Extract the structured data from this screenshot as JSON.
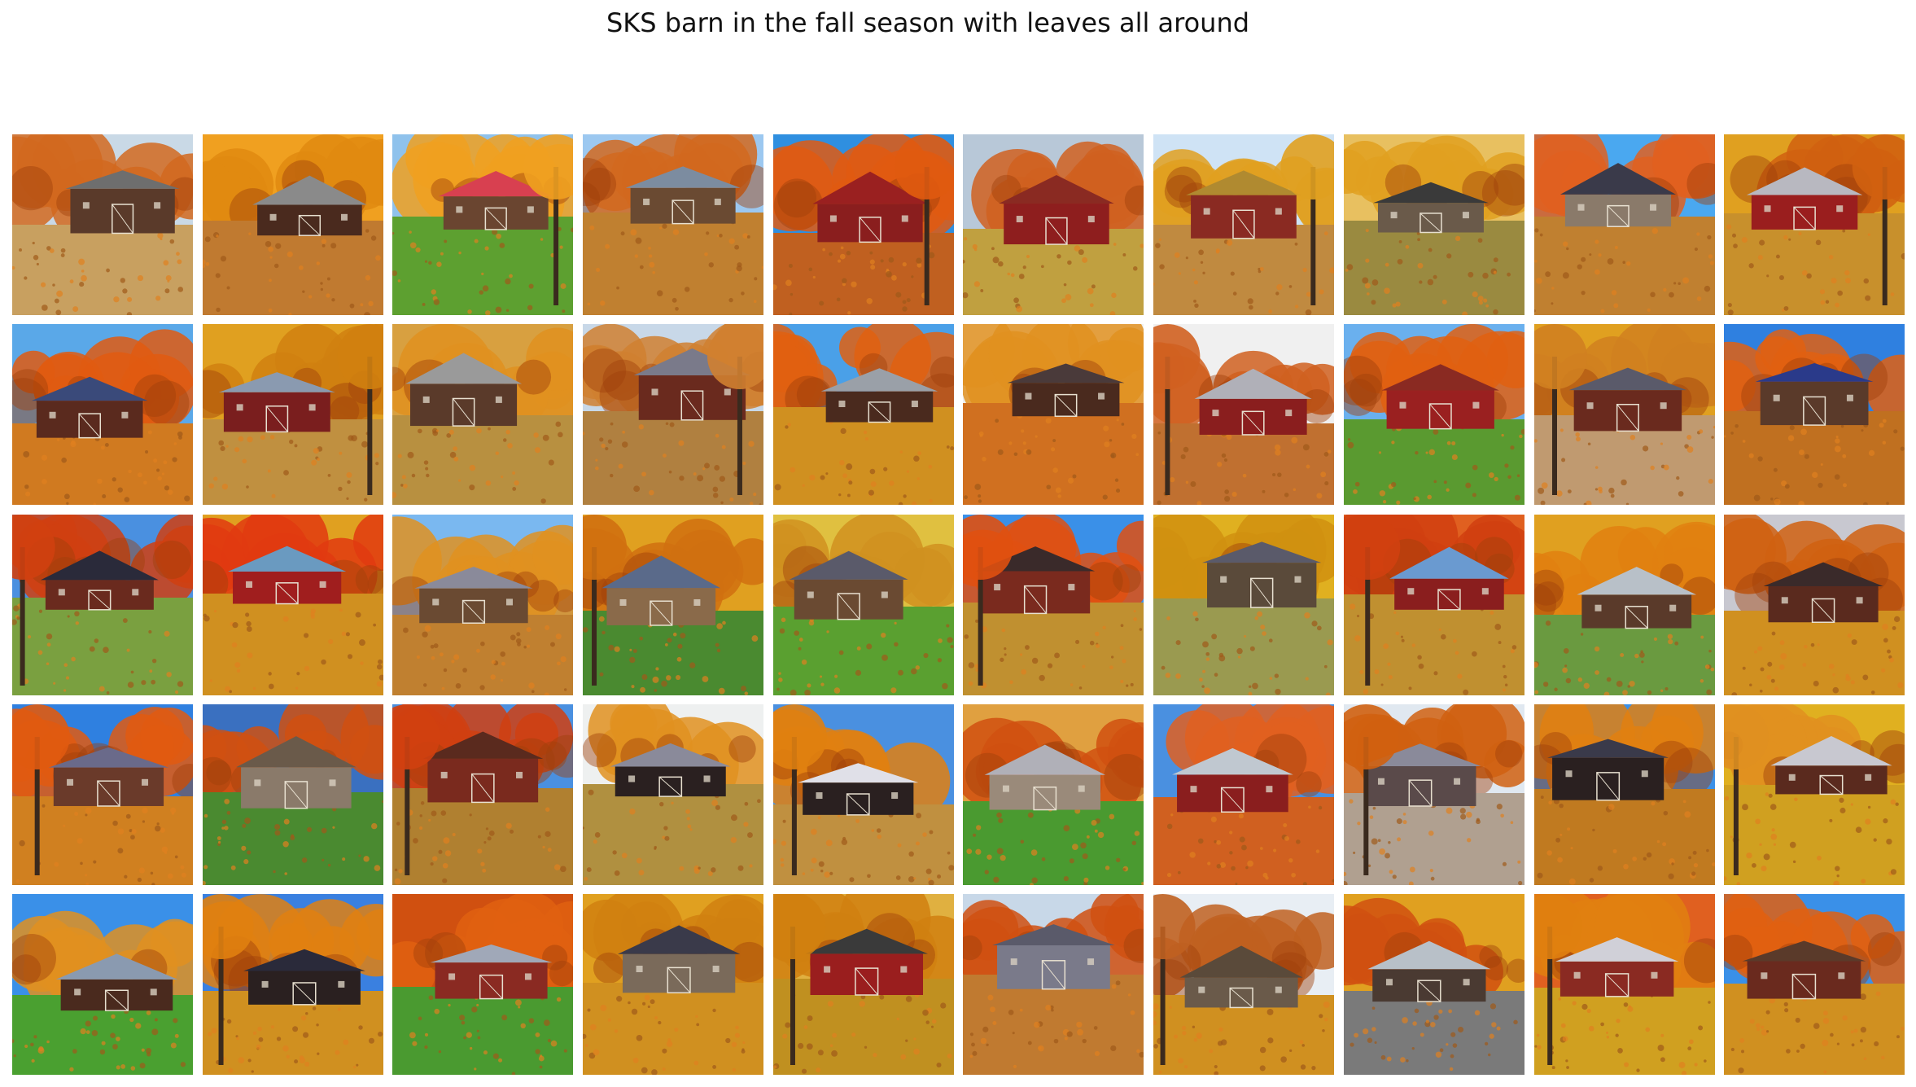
{
  "figure": {
    "title": "SKS barn in the fall season with leaves all around"
  },
  "gallery": {
    "rows": 5,
    "columns": 10,
    "tiles": [
      {
        "subject": "barn",
        "sky": "#c9d9e6",
        "foliage": "#d2691e",
        "ground": "#c8a060",
        "roof": "#6e6e6e",
        "wall": "#5a3a2a"
      },
      {
        "subject": "barn",
        "sky": "#f0a020",
        "foliage": "#e08a10",
        "ground": "#c07a30",
        "roof": "#8a8a8a",
        "wall": "#4a2a1e"
      },
      {
        "subject": "barn",
        "sky": "#8fc2ec",
        "foliage": "#f0a020",
        "ground": "#5da030",
        "roof": "#d84050",
        "wall": "#6a4530"
      },
      {
        "subject": "barn",
        "sky": "#9cc8f0",
        "foliage": "#d2691e",
        "ground": "#c08030",
        "roof": "#7c8ca0",
        "wall": "#6a4a32"
      },
      {
        "subject": "barn",
        "sky": "#2f8fe0",
        "foliage": "#e05a10",
        "ground": "#c06020",
        "roof": "#9a2020",
        "wall": "#8a1e1e"
      },
      {
        "subject": "barn",
        "sky": "#b8c8d8",
        "foliage": "#d06020",
        "ground": "#c0a040",
        "roof": "#8a2a22",
        "wall": "#8e1e1e"
      },
      {
        "subject": "barn",
        "sky": "#cfe3f5",
        "foliage": "#e0a020",
        "ground": "#c08a40",
        "roof": "#b08a30",
        "wall": "#8a2a22"
      },
      {
        "subject": "barn",
        "sky": "#e8c060",
        "foliage": "#e0a020",
        "ground": "#9a8a40",
        "roof": "#3a3a3a",
        "wall": "#6a5a4a"
      },
      {
        "subject": "barn",
        "sky": "#4aa8f0",
        "foliage": "#e06020",
        "ground": "#c08030",
        "roof": "#3a3a4a",
        "wall": "#8a7a6a"
      },
      {
        "subject": "barn",
        "sky": "#e0a020",
        "foliage": "#d06010",
        "ground": "#c8902c",
        "roof": "#b8b8c0",
        "wall": "#9a1e1e"
      },
      {
        "subject": "barn",
        "sky": "#5aa8e8",
        "foliage": "#e05a10",
        "ground": "#d07a20",
        "roof": "#3a4a7a",
        "wall": "#5a2a1e"
      },
      {
        "subject": "barn",
        "sky": "#e0a020",
        "foliage": "#d08010",
        "ground": "#c09040",
        "roof": "#8a9ab0",
        "wall": "#7a1e1e"
      },
      {
        "subject": "barn",
        "sky": "#d8a040",
        "foliage": "#e09020",
        "ground": "#b89040",
        "roof": "#9a9a9a",
        "wall": "#5a3a2a"
      },
      {
        "subject": "barn",
        "sky": "#c8d8e8",
        "foliage": "#d08030",
        "ground": "#b08040",
        "roof": "#7a7a8a",
        "wall": "#6a2a1e"
      },
      {
        "subject": "barn",
        "sky": "#4aa0e8",
        "foliage": "#e06010",
        "ground": "#d09020",
        "roof": "#9aa0a8",
        "wall": "#4a2a1e"
      },
      {
        "subject": "barn",
        "sky": "#eef0f0",
        "foliage": "#e09020",
        "ground": "#d07020",
        "roof": "#4a3a3a",
        "wall": "#4a2a1e"
      },
      {
        "subject": "barn",
        "sky": "#f0f0f0",
        "foliage": "#d06020",
        "ground": "#c07030",
        "roof": "#b0b0b8",
        "wall": "#8a1e1e"
      },
      {
        "subject": "barn",
        "sky": "#6ab0ee",
        "foliage": "#e06010",
        "ground": "#5a9a30",
        "roof": "#8a2a22",
        "wall": "#9a2020"
      },
      {
        "subject": "barn",
        "sky": "#e0a020",
        "foliage": "#d08020",
        "ground": "#c09a70",
        "roof": "#5a5a6a",
        "wall": "#6a2a1e"
      },
      {
        "subject": "barn",
        "sky": "#2f80e0",
        "foliage": "#e06010",
        "ground": "#c07020",
        "roof": "#2a3a8a",
        "wall": "#5a3a2a"
      },
      {
        "subject": "barn",
        "sky": "#4a90e0",
        "foliage": "#d04010",
        "ground": "#7aa040",
        "roof": "#2a2a3a",
        "wall": "#6a2a1e"
      },
      {
        "subject": "barn",
        "sky": "#e0a020",
        "foliage": "#e03a10",
        "ground": "#d09020",
        "roof": "#6a9ac0",
        "wall": "#a01e1e"
      },
      {
        "subject": "barn",
        "sky": "#7ab8f0",
        "foliage": "#e09020",
        "ground": "#c08030",
        "roof": "#8a8a9a",
        "wall": "#6a4a32"
      },
      {
        "subject": "barn",
        "sky": "#e0a020",
        "foliage": "#d07010",
        "ground": "#4a8a30",
        "roof": "#5a6a8a",
        "wall": "#8a6a4a"
      },
      {
        "subject": "barn",
        "sky": "#e0c040",
        "foliage": "#d09020",
        "ground": "#5aa030",
        "roof": "#5a5a6a",
        "wall": "#6a4a32"
      },
      {
        "subject": "barn",
        "sky": "#3a90e8",
        "foliage": "#e05010",
        "ground": "#c09030",
        "roof": "#3a2a2a",
        "wall": "#7a2a1e"
      },
      {
        "subject": "barn",
        "sky": "#e0b020",
        "foliage": "#d09010",
        "ground": "#9a9a50",
        "roof": "#5a5a6a",
        "wall": "#5a4a3a"
      },
      {
        "subject": "barn",
        "sky": "#e06020",
        "foliage": "#d04010",
        "ground": "#c09030",
        "roof": "#6a9ad0",
        "wall": "#8a1e1e"
      },
      {
        "subject": "barn",
        "sky": "#e0a020",
        "foliage": "#e08010",
        "ground": "#6a9a40",
        "roof": "#b8c0c8",
        "wall": "#5a3a2a"
      },
      {
        "subject": "barn",
        "sky": "#c8c8d0",
        "foliage": "#d06010",
        "ground": "#d09020",
        "roof": "#3a2a2a",
        "wall": "#5a2a1e"
      },
      {
        "subject": "barn",
        "sky": "#2f80e0",
        "foliage": "#e05a10",
        "ground": "#d08020",
        "roof": "#6a6a8a",
        "wall": "#6a3a2a"
      },
      {
        "subject": "barn",
        "sky": "#3a70c0",
        "foliage": "#d05010",
        "ground": "#4a8a30",
        "roof": "#6a5a4a",
        "wall": "#8a7a6a"
      },
      {
        "subject": "barn",
        "sky": "#4a90e0",
        "foliage": "#d04010",
        "ground": "#b08030",
        "roof": "#5a2a1e",
        "wall": "#7a2a1e"
      },
      {
        "subject": "barn",
        "sky": "#eef0f0",
        "foliage": "#e09020",
        "ground": "#b09040",
        "roof": "#8a8a9a",
        "wall": "#2a2020"
      },
      {
        "subject": "barn",
        "sky": "#4a90e0",
        "foliage": "#e08010",
        "ground": "#c09040",
        "roof": "#e0e0e8",
        "wall": "#2a2020"
      },
      {
        "subject": "barn",
        "sky": "#e0a040",
        "foliage": "#d05010",
        "ground": "#4a9a30",
        "roof": "#b0b0b8",
        "wall": "#9a8a7a"
      },
      {
        "subject": "barn",
        "sky": "#4a90e0",
        "foliage": "#e06020",
        "ground": "#d06020",
        "roof": "#c0c8d0",
        "wall": "#8a1e1e"
      },
      {
        "subject": "barn",
        "sky": "#e0e8f0",
        "foliage": "#d06010",
        "ground": "#b0a090",
        "roof": "#8a8a9a",
        "wall": "#5a4a4a"
      },
      {
        "subject": "barn",
        "sky": "#3a90e8",
        "foliage": "#e08010",
        "ground": "#c07a20",
        "roof": "#3a3a4a",
        "wall": "#2a2020"
      },
      {
        "subject": "barn",
        "sky": "#e0b020",
        "foliage": "#e09020",
        "ground": "#d0a020",
        "roof": "#c8c8d0",
        "wall": "#5a2a1e"
      },
      {
        "subject": "barn",
        "sky": "#3a90e8",
        "foliage": "#e09020",
        "ground": "#4aa030",
        "roof": "#8a9ab0",
        "wall": "#4a2a1e"
      },
      {
        "subject": "barn",
        "sky": "#3a80e0",
        "foliage": "#e08010",
        "ground": "#d09020",
        "roof": "#2a2a3a",
        "wall": "#2a2020"
      },
      {
        "subject": "barn",
        "sky": "#d05010",
        "foliage": "#e06010",
        "ground": "#4a9a30",
        "roof": "#a0a8b8",
        "wall": "#8a2a22"
      },
      {
        "subject": "barn",
        "sky": "#e0a020",
        "foliage": "#d08010",
        "ground": "#d09020",
        "roof": "#3a3a4a",
        "wall": "#7a6a5a"
      },
      {
        "subject": "barn",
        "sky": "#e0b040",
        "foliage": "#d08010",
        "ground": "#c09020",
        "roof": "#3a3a3a",
        "wall": "#9a1e1e"
      },
      {
        "subject": "barn",
        "sky": "#c8d8e8",
        "foliage": "#d05010",
        "ground": "#c07a30",
        "roof": "#5a5a6a",
        "wall": "#7a7a8a"
      },
      {
        "subject": "barn",
        "sky": "#e8eef4",
        "foliage": "#c06020",
        "ground": "#d09020",
        "roof": "#5a4a3a",
        "wall": "#6a5a4a"
      },
      {
        "subject": "barn",
        "sky": "#e0a020",
        "foliage": "#d05010",
        "ground": "#7a7a7a",
        "roof": "#b8c0c8",
        "wall": "#4a3a32"
      },
      {
        "subject": "barn",
        "sky": "#e06020",
        "foliage": "#e08010",
        "ground": "#d0a020",
        "roof": "#d0d0d8",
        "wall": "#8a2a22"
      },
      {
        "subject": "barn",
        "sky": "#3a90e8",
        "foliage": "#e06010",
        "ground": "#d09020",
        "roof": "#5a3a2a",
        "wall": "#6a2a1e"
      }
    ]
  }
}
